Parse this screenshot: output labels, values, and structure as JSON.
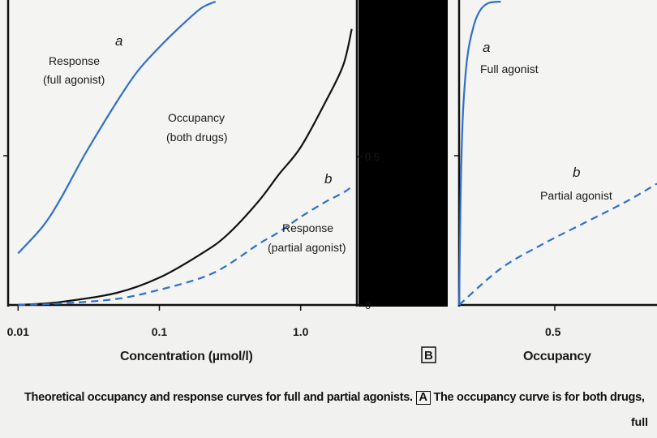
{
  "chart_data": [
    {
      "type": "line",
      "panel": "A",
      "x_scale": "log",
      "xlabel": "Concentration (µmol/l)",
      "x_ticks": [
        "0.01",
        "0.1",
        "1.0"
      ],
      "y_ticks_right": [
        "0.5",
        "0"
      ],
      "xlim": [
        0.0085,
        2.5
      ],
      "ylim": [
        0,
        1.0
      ],
      "grid": false,
      "series": [
        {
          "name": "Response (full agonist)",
          "marker": "a",
          "style": "solid",
          "color": "#2f6fc8",
          "x": [
            0.01,
            0.015,
            0.02,
            0.03,
            0.05,
            0.07,
            0.1,
            0.15,
            0.2,
            0.25
          ],
          "y": [
            0.17,
            0.26,
            0.35,
            0.5,
            0.67,
            0.77,
            0.85,
            0.93,
            0.98,
            1.0
          ]
        },
        {
          "name": "Occupancy (both drugs)",
          "style": "solid",
          "color": "#111111",
          "x": [
            0.01,
            0.02,
            0.05,
            0.1,
            0.2,
            0.3,
            0.5,
            0.7,
            1.0,
            1.5,
            2.0,
            2.3
          ],
          "y": [
            0.0,
            0.01,
            0.04,
            0.09,
            0.17,
            0.23,
            0.34,
            0.43,
            0.52,
            0.67,
            0.79,
            0.91
          ]
        },
        {
          "name": "Response (partial agonist)",
          "marker": "b",
          "style": "dashed",
          "color": "#2f6fc8",
          "x": [
            0.01,
            0.02,
            0.05,
            0.1,
            0.2,
            0.3,
            0.5,
            0.7,
            1.0,
            1.5,
            2.0,
            2.3
          ],
          "y": [
            0.0,
            0.005,
            0.02,
            0.05,
            0.09,
            0.13,
            0.2,
            0.24,
            0.29,
            0.34,
            0.37,
            0.39
          ]
        }
      ],
      "annotations": {
        "a": "a",
        "b": "b",
        "full_response": [
          "Response",
          "(full agonist)"
        ],
        "occupancy": [
          "Occupancy",
          "(both drugs)"
        ],
        "partial_response": [
          "Response",
          "(partial agonist)"
        ]
      }
    },
    {
      "type": "line",
      "panel": "B",
      "xlabel": "Occupancy",
      "x_ticks": [
        "0.5"
      ],
      "xlim": [
        0,
        0.95
      ],
      "ylim": [
        0,
        1.0
      ],
      "grid": false,
      "series": [
        {
          "name": "Full agonist",
          "marker": "a",
          "style": "solid",
          "color": "#2f6fc8",
          "x": [
            0.0,
            0.005,
            0.01,
            0.02,
            0.04,
            0.07,
            0.1,
            0.14,
            0.2
          ],
          "y": [
            0.0,
            0.25,
            0.45,
            0.65,
            0.82,
            0.92,
            0.97,
            0.995,
            1.0
          ]
        },
        {
          "name": "Partial agonist",
          "marker": "b",
          "style": "dashed",
          "color": "#2f6fc8",
          "x": [
            0.0,
            0.2,
            0.4,
            0.6,
            0.8,
            0.95
          ],
          "y": [
            0.0,
            0.12,
            0.2,
            0.27,
            0.34,
            0.4
          ]
        }
      ],
      "annotations": {
        "a": "a",
        "b": "b"
      }
    }
  ],
  "panel_b_label": "B",
  "caption": {
    "panel_a_label": "A",
    "before": "Theoretical occupancy and response curves for full and partial agonists.",
    "after": "The occupancy curve is for both drugs,",
    "cut_off_text": "full"
  }
}
